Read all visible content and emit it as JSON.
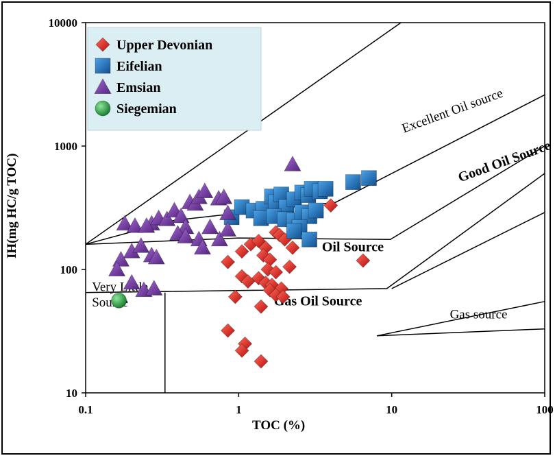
{
  "chart_data": {
    "type": "scatter",
    "xlabel": "TOC (%)",
    "ylabel": "IH(mg HC/g TOC)",
    "xscale": "log",
    "yscale": "log",
    "xlim": [
      0.1,
      100
    ],
    "ylim": [
      10,
      10000
    ],
    "x_ticks": [
      "0.1",
      "1",
      "10",
      "100"
    ],
    "y_ticks": [
      "10",
      "100",
      "1000",
      "10000"
    ],
    "grid": false,
    "legend_position": "top-left",
    "region_labels": [
      {
        "text": "Excellent Oil source",
        "x": 12,
        "y": 1280,
        "angle": -20
      },
      {
        "text": "Good Oil Source",
        "x": 28,
        "y": 510,
        "angle": -20
      },
      {
        "text": "Oil Source",
        "x": 3.5,
        "y": 140,
        "angle": 0
      },
      {
        "text": "Gas Oil Source",
        "x": 1.7,
        "y": 51,
        "angle": 0
      },
      {
        "text": "Gas source",
        "x": 24,
        "y": 40,
        "angle": 0
      },
      {
        "text": "Very Little",
        "x": 0.11,
        "y": 67,
        "angle": 0
      },
      {
        "text": "Source",
        "x": 0.11,
        "y": 50,
        "angle": 0
      }
    ],
    "boundary_lines": [
      {
        "points": [
          [
            0.1,
            160
          ],
          [
            11.5,
            10000
          ]
        ]
      },
      {
        "points": [
          [
            0.1,
            160
          ],
          [
            0.38,
            250
          ],
          [
            4.3,
            350
          ],
          [
            100,
            2600
          ]
        ]
      },
      {
        "points": [
          [
            0.1,
            160
          ],
          [
            1,
            180
          ],
          [
            9.8,
            175
          ],
          [
            100,
            1000
          ]
        ]
      },
      {
        "points": [
          [
            0.1,
            65
          ],
          [
            9.3,
            70
          ],
          [
            100,
            600
          ]
        ]
      },
      {
        "points": [
          [
            10,
            70
          ],
          [
            100,
            290
          ]
        ]
      },
      {
        "points": [
          [
            8,
            29
          ],
          [
            100,
            55
          ]
        ]
      },
      {
        "points": [
          [
            8,
            29
          ],
          [
            100,
            33
          ]
        ]
      },
      {
        "points": [
          [
            0.33,
            10
          ],
          [
            0.33,
            65
          ]
        ]
      }
    ],
    "series": [
      {
        "name": "Upper Devonian",
        "marker": "diamond",
        "color": "#e02020",
        "points": [
          [
            0.85,
            115
          ],
          [
            1.05,
            140
          ],
          [
            1.2,
            160
          ],
          [
            1.35,
            170
          ],
          [
            1.5,
            150
          ],
          [
            1.45,
            130
          ],
          [
            1.6,
            120
          ],
          [
            1.75,
            200
          ],
          [
            1.85,
            190
          ],
          [
            2.0,
            175
          ],
          [
            2.25,
            150
          ],
          [
            1.55,
            100
          ],
          [
            1.75,
            95
          ],
          [
            2.15,
            105
          ],
          [
            1.05,
            88
          ],
          [
            1.15,
            80
          ],
          [
            1.35,
            85
          ],
          [
            1.5,
            78
          ],
          [
            1.65,
            75
          ],
          [
            1.9,
            70
          ],
          [
            1.6,
            68
          ],
          [
            1.75,
            62
          ],
          [
            1.95,
            60
          ],
          [
            0.95,
            60
          ],
          [
            1.4,
            50
          ],
          [
            0.85,
            32
          ],
          [
            1.1,
            25
          ],
          [
            1.05,
            22
          ],
          [
            1.4,
            18
          ],
          [
            4.0,
            330
          ],
          [
            6.5,
            118
          ]
        ]
      },
      {
        "name": "Eifelian",
        "marker": "square",
        "color": "#1e6fb8",
        "points": [
          [
            0.9,
            265
          ],
          [
            1.05,
            320
          ],
          [
            1.25,
            300
          ],
          [
            1.45,
            310
          ],
          [
            1.65,
            390
          ],
          [
            1.75,
            350
          ],
          [
            1.9,
            405
          ],
          [
            2.05,
            320
          ],
          [
            2.3,
            370
          ],
          [
            2.6,
            420
          ],
          [
            2.85,
            400
          ],
          [
            3.0,
            450
          ],
          [
            3.4,
            430
          ],
          [
            3.7,
            450
          ],
          [
            1.4,
            260
          ],
          [
            1.7,
            270
          ],
          [
            2.0,
            255
          ],
          [
            2.3,
            250
          ],
          [
            2.6,
            290
          ],
          [
            2.9,
            270
          ],
          [
            3.2,
            300
          ],
          [
            2.5,
            220
          ],
          [
            2.3,
            205
          ],
          [
            2.9,
            175
          ],
          [
            5.6,
            510
          ],
          [
            7.1,
            550
          ]
        ]
      },
      {
        "name": "Emsian",
        "marker": "triangle",
        "color": "#7b3fa8",
        "points": [
          [
            0.18,
            235
          ],
          [
            0.21,
            225
          ],
          [
            0.27,
            235
          ],
          [
            0.3,
            260
          ],
          [
            0.34,
            255
          ],
          [
            0.38,
            300
          ],
          [
            0.42,
            270
          ],
          [
            0.45,
            220
          ],
          [
            0.48,
            350
          ],
          [
            0.52,
            340
          ],
          [
            0.55,
            385
          ],
          [
            0.6,
            430
          ],
          [
            0.65,
            220
          ],
          [
            0.74,
            375
          ],
          [
            0.8,
            385
          ],
          [
            0.85,
            285
          ],
          [
            0.4,
            195
          ],
          [
            0.45,
            185
          ],
          [
            0.55,
            175
          ],
          [
            0.75,
            175
          ],
          [
            0.85,
            210
          ],
          [
            0.2,
            140
          ],
          [
            0.27,
            130
          ],
          [
            0.29,
            125
          ],
          [
            0.23,
            155
          ],
          [
            0.17,
            120
          ],
          [
            0.16,
            100
          ],
          [
            0.2,
            78
          ],
          [
            0.24,
            68
          ],
          [
            0.28,
            70
          ],
          [
            0.25,
            225
          ],
          [
            0.58,
            150
          ],
          [
            2.25,
            710
          ]
        ]
      },
      {
        "name": "Siegemian",
        "marker": "circle",
        "color": "#1f9a3a",
        "points": [
          [
            0.165,
            56
          ]
        ]
      }
    ]
  }
}
